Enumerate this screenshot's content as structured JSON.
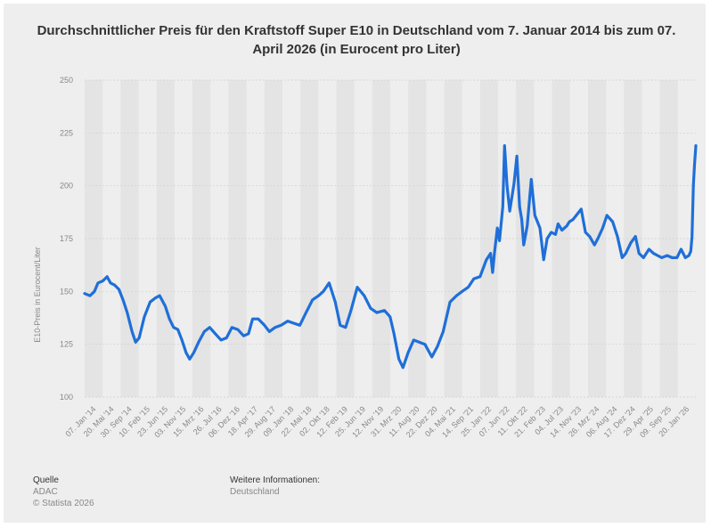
{
  "title": "Durchschnittlicher Preis für den Kraftstoff Super E10 in Deutschland vom 7. Januar 2014 bis zum 07. April 2026 (in Eurocent pro Liter)",
  "footer": {
    "source_label": "Quelle",
    "source_lines": [
      "ADAC",
      "© Statista 2026"
    ],
    "info_label": "Weitere Informationen:",
    "info_value": "Deutschland"
  },
  "colors": {
    "line": "#1f6fd8",
    "band": "#e4e4e4",
    "grid": "#cfcfcf",
    "background": "#eeeeee"
  },
  "chart_data": {
    "type": "line",
    "title": "Durchschnittlicher Preis für den Kraftstoff Super E10 in Deutschland vom 7. Januar 2014 bis zum 07. April 2026 (in Eurocent pro Liter)",
    "xlabel": "",
    "ylabel": "E10-Preis in Eurocent/Liter",
    "ylim": [
      100,
      250
    ],
    "yticks": [
      100,
      125,
      150,
      175,
      200,
      225,
      250
    ],
    "grid": true,
    "legend": "none",
    "xtick_labels": [
      "07. Jan '14",
      "20. Mai '14",
      "30. Sep '14",
      "10. Feb '15",
      "23. Jun '15",
      "03. Nov '15",
      "15. Mrz '16",
      "26. Jul '16",
      "06. Dez '16",
      "18. Apr '17",
      "29. Aug '17",
      "09. Jan '18",
      "22. Mai '18",
      "02. Okt '18",
      "12. Feb '19",
      "25. Jun '19",
      "12. Nov '19",
      "31. Mrz '20",
      "11. Aug '20",
      "22. Dez '20",
      "04. Mai '21",
      "14. Sep '21",
      "25. Jan '22",
      "07. Jun '22",
      "11. Okt '22",
      "21. Feb '23",
      "04. Jul '23",
      "14. Nov '23",
      "26. Mrz '24",
      "06. Aug '24",
      "17. Dez '24",
      "29. Apr '25",
      "09. Sep '25",
      "20. Jan '26"
    ],
    "series": [
      {
        "x": [
          "2014-01-07",
          "2014-02-15",
          "2014-03-20",
          "2014-04-15",
          "2014-05-20",
          "2014-06-20",
          "2014-07-15",
          "2014-08-15",
          "2014-09-15",
          "2014-10-15",
          "2014-11-15",
          "2014-12-20",
          "2015-01-15",
          "2015-02-10",
          "2015-03-20",
          "2015-05-01",
          "2015-06-10",
          "2015-07-10",
          "2015-08-20",
          "2015-09-20",
          "2015-10-20",
          "2015-11-20",
          "2015-12-20",
          "2016-01-20",
          "2016-02-15",
          "2016-03-15",
          "2016-04-20",
          "2016-06-01",
          "2016-07-10",
          "2016-08-20",
          "2016-10-01",
          "2016-11-10",
          "2016-12-20",
          "2017-02-01",
          "2017-03-15",
          "2017-04-20",
          "2017-05-20",
          "2017-07-01",
          "2017-08-15",
          "2017-09-20",
          "2017-11-01",
          "2017-12-15",
          "2018-02-01",
          "2018-03-15",
          "2018-05-01",
          "2018-06-15",
          "2018-08-01",
          "2018-09-15",
          "2018-10-20",
          "2018-12-01",
          "2019-01-15",
          "2019-02-20",
          "2019-04-01",
          "2019-05-10",
          "2019-06-25",
          "2019-08-15",
          "2019-10-01",
          "2019-11-15",
          "2020-01-10",
          "2020-02-20",
          "2020-03-20",
          "2020-04-25",
          "2020-05-25",
          "2020-07-01",
          "2020-08-11",
          "2020-09-20",
          "2020-11-01",
          "2020-12-22",
          "2021-02-01",
          "2021-03-15",
          "2021-05-04",
          "2021-06-20",
          "2021-08-01",
          "2021-09-14",
          "2021-10-25",
          "2021-12-10",
          "2022-01-25",
          "2022-02-25",
          "2022-03-12",
          "2022-03-25",
          "2022-04-15",
          "2022-05-01",
          "2022-05-25",
          "2022-06-07",
          "2022-06-25",
          "2022-07-15",
          "2022-08-15",
          "2022-09-05",
          "2022-09-25",
          "2022-10-11",
          "2022-10-25",
          "2022-11-20",
          "2022-12-20",
          "2023-01-15",
          "2023-02-21",
          "2023-03-20",
          "2023-04-15",
          "2023-05-15",
          "2023-06-15",
          "2023-07-04",
          "2023-08-01",
          "2023-09-05",
          "2023-09-25",
          "2023-10-20",
          "2023-11-14",
          "2023-12-20",
          "2024-01-20",
          "2024-02-20",
          "2024-03-26",
          "2024-04-20",
          "2024-05-25",
          "2024-06-25",
          "2024-08-06",
          "2024-09-10",
          "2024-10-15",
          "2024-11-10",
          "2024-12-17",
          "2025-01-20",
          "2025-02-15",
          "2025-03-20",
          "2025-04-29",
          "2025-06-01",
          "2025-07-01",
          "2025-08-01",
          "2025-09-09",
          "2025-10-15",
          "2025-11-20",
          "2025-12-20",
          "2026-01-20",
          "2026-02-15",
          "2026-03-01",
          "2026-03-10",
          "2026-03-20",
          "2026-03-28",
          "2026-04-07"
        ],
        "y": [
          149,
          148,
          150,
          154,
          155,
          157,
          154,
          153,
          151,
          146,
          140,
          131,
          126,
          128,
          138,
          145,
          147,
          148,
          143,
          137,
          133,
          132,
          127,
          121,
          118,
          121,
          126,
          131,
          133,
          130,
          127,
          128,
          133,
          132,
          129,
          130,
          137,
          137,
          134,
          131,
          133,
          134,
          136,
          135,
          134,
          140,
          146,
          148,
          150,
          154,
          145,
          134,
          133,
          141,
          152,
          148,
          142,
          140,
          141,
          138,
          130,
          118,
          114,
          121,
          127,
          126,
          125,
          119,
          124,
          131,
          145,
          148,
          150,
          152,
          156,
          157,
          165,
          168,
          159,
          168,
          180,
          174,
          190,
          219,
          200,
          188,
          201,
          214,
          190,
          184,
          172,
          181,
          203,
          186,
          180,
          165,
          175,
          178,
          177,
          182,
          179,
          181,
          183,
          184,
          186,
          189,
          178,
          176,
          172,
          175,
          180,
          186,
          183,
          176,
          166,
          168,
          173,
          176,
          168,
          166,
          170,
          168,
          167,
          166,
          167,
          166,
          166,
          170,
          166,
          167,
          169,
          176,
          200,
          210,
          219
        ]
      }
    ]
  }
}
